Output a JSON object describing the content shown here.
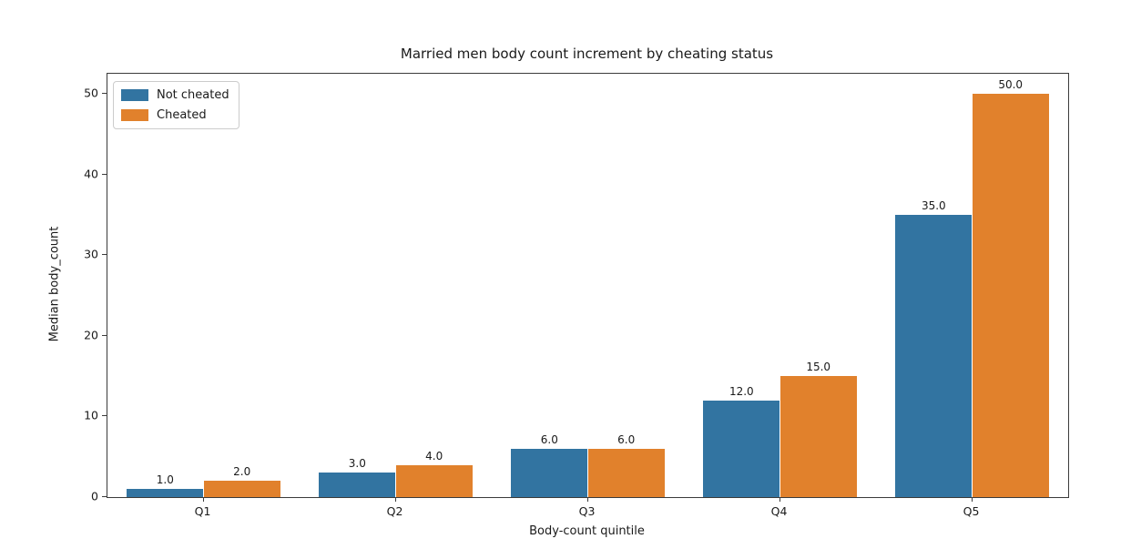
{
  "chart_data": {
    "type": "bar",
    "title": "Married men body count increment by cheating status",
    "xlabel": "Body-count quintile",
    "ylabel": "Median body_count",
    "categories": [
      "Q1",
      "Q2",
      "Q3",
      "Q4",
      "Q5"
    ],
    "series": [
      {
        "name": "Not cheated",
        "color": "#3274a1",
        "values": [
          1.0,
          3.0,
          6.0,
          12.0,
          35.0
        ],
        "labels": [
          "1.0",
          "3.0",
          "6.0",
          "12.0",
          "35.0"
        ]
      },
      {
        "name": "Cheated",
        "color": "#e1812c",
        "values": [
          2.0,
          4.0,
          6.0,
          15.0,
          50.0
        ],
        "labels": [
          "2.0",
          "4.0",
          "6.0",
          "15.0",
          "50.0"
        ]
      }
    ],
    "ylim": [
      0,
      52.5
    ],
    "yticks": [
      0,
      10,
      20,
      30,
      40,
      50
    ],
    "grid": false,
    "legend_position": "upper left",
    "bar_width_fraction": 0.4,
    "background_color": "#ffffff",
    "spine_color": "#3b3b3b",
    "text_color": "#1a1a1a"
  }
}
